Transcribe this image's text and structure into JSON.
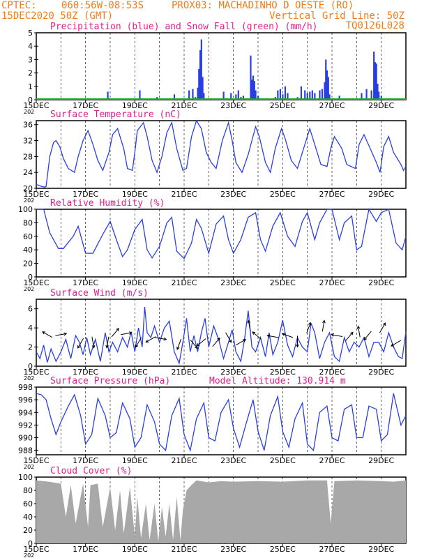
{
  "header": {
    "left_line1": "CPTEC:",
    "coords": "060:56W-08:53S",
    "station": "PROX03: MACHADINHO D OESTE (RO)",
    "left_line2": "15DEC2020 50Z (GMT)",
    "grid_note": "Vertical Grid Line: 50Z",
    "model_code": "TQ0126L028",
    "color": "#f07d1a"
  },
  "colors": {
    "title": "#e0208a",
    "line": "#2a3fe0",
    "precip": "#2a3fe0",
    "snow": "#1faa2a",
    "cloud": "#a8a8a8",
    "wind_arrow": "#000000"
  },
  "x_axis": {
    "day_labels": [
      "15DEC",
      "17DEC",
      "19DEC",
      "21DEC",
      "23DEC",
      "25DEC",
      "27DEC",
      "29DEC"
    ],
    "start_day": 15,
    "end_day": 30,
    "year_stub": "202"
  },
  "chart_data": [
    {
      "type": "bar",
      "title": "Precipitation (blue) and Snow Fall (green) (mm/h)",
      "ylim": [
        0,
        5
      ],
      "yticks": [
        "0",
        "1",
        "2",
        "3",
        "4",
        "5"
      ],
      "series": [
        {
          "x": [
            16.1,
            17.9,
            19.2,
            19.9,
            20.6,
            21.2,
            21.35,
            21.45,
            21.55,
            21.6,
            21.65,
            21.7,
            21.75,
            21.8,
            22.6,
            22.9,
            23.1,
            23.2,
            23.3,
            23.4,
            23.7,
            23.75,
            23.8,
            23.85,
            23.9,
            24.0,
            24.7,
            24.8,
            24.9,
            25.0,
            25.1,
            25.2,
            25.6,
            25.75,
            25.9,
            26.0,
            26.1,
            26.2,
            26.3,
            26.5,
            26.6,
            26.7,
            26.75,
            26.8,
            26.85,
            26.9,
            27.0,
            27.3,
            28.2,
            28.4,
            28.6,
            28.7,
            28.75,
            28.8,
            28.85,
            28.9,
            29.0
          ],
          "values": [
            0.1,
            0.6,
            0.7,
            0.2,
            0.4,
            0.7,
            0.8,
            0.2,
            0.9,
            2.3,
            3.7,
            4.5,
            1.7,
            0.5,
            0.6,
            0.5,
            0.4,
            0.7,
            0.2,
            0.3,
            3.3,
            1.5,
            1.8,
            1.4,
            0.7,
            0.3,
            0.2,
            0.7,
            0.8,
            0.4,
            1.0,
            0.5,
            0.2,
            1.0,
            0.7,
            0.5,
            0.6,
            0.7,
            0.5,
            0.7,
            0.8,
            1.3,
            3.0,
            2.2,
            1.7,
            0.4,
            0.1,
            0.3,
            0.5,
            0.8,
            0.7,
            3.6,
            2.8,
            2.7,
            1.2,
            0.6,
            0.3
          ]
        }
      ]
    },
    {
      "type": "line",
      "title": "Surface Temperature (nC)",
      "ylim": [
        20,
        37
      ],
      "yticks": [
        "20",
        "24",
        "28",
        "32",
        "36"
      ],
      "x": [
        15.0,
        15.2,
        15.35,
        15.4,
        15.55,
        15.7,
        15.8,
        15.95,
        16.1,
        16.3,
        16.55,
        16.7,
        16.9,
        17.1,
        17.3,
        17.5,
        17.7,
        17.95,
        18.1,
        18.3,
        18.55,
        18.7,
        18.9,
        19.0,
        19.1,
        19.35,
        19.5,
        19.7,
        19.9,
        20.1,
        20.3,
        20.5,
        20.7,
        20.95,
        21.1,
        21.3,
        21.5,
        21.7,
        21.9,
        22.1,
        22.3,
        22.55,
        22.8,
        22.95,
        23.1,
        23.35,
        23.6,
        23.9,
        24.05,
        24.3,
        24.5,
        24.7,
        24.95,
        25.1,
        25.35,
        25.6,
        25.9,
        26.1,
        26.3,
        26.55,
        26.8,
        26.95,
        27.1,
        27.4,
        27.6,
        27.95,
        28.1,
        28.3,
        28.55,
        28.8,
        28.95,
        29.1,
        29.3,
        29.5,
        29.8,
        29.9,
        30.0
      ],
      "values": [
        21.0,
        20.5,
        20.3,
        20.5,
        28.0,
        31.5,
        32.0,
        30.5,
        27.5,
        25.0,
        24.0,
        28.0,
        32.0,
        34.5,
        31.0,
        27.0,
        24.5,
        29.0,
        33.5,
        35.0,
        30.0,
        25.0,
        24.5,
        29.0,
        34.5,
        36.5,
        33.0,
        27.0,
        24.0,
        28.0,
        34.0,
        36.5,
        30.0,
        24.5,
        25.0,
        33.0,
        37.0,
        35.0,
        29.0,
        26.5,
        25.0,
        32.0,
        36.5,
        32.0,
        26.5,
        24.0,
        28.5,
        35.5,
        33.0,
        26.5,
        24.0,
        30.0,
        35.0,
        32.5,
        27.0,
        25.0,
        31.0,
        35.0,
        31.0,
        26.0,
        25.5,
        30.0,
        33.0,
        30.0,
        26.0,
        25.0,
        31.0,
        33.5,
        30.0,
        26.5,
        24.0,
        30.5,
        33.0,
        29.0,
        26.0,
        24.5,
        25.5
      ]
    },
    {
      "type": "line",
      "title": "Relative Humidity (%)",
      "ylim": [
        0,
        100
      ],
      "yticks": [
        "0",
        "20",
        "40",
        "60",
        "80",
        "100"
      ],
      "x": [
        15.0,
        15.3,
        15.55,
        15.9,
        16.1,
        16.5,
        16.7,
        17.0,
        17.3,
        17.7,
        18.0,
        18.3,
        18.5,
        18.7,
        19.0,
        19.3,
        19.5,
        19.7,
        20.0,
        20.3,
        20.5,
        20.7,
        21.0,
        21.3,
        21.5,
        21.7,
        22.0,
        22.3,
        22.6,
        22.8,
        23.0,
        23.3,
        23.6,
        23.9,
        24.1,
        24.3,
        24.6,
        24.9,
        25.2,
        25.5,
        25.8,
        26.0,
        26.3,
        26.5,
        26.8,
        27.0,
        27.3,
        27.5,
        27.8,
        28.0,
        28.2,
        28.5,
        28.8,
        29.0,
        29.3,
        29.6,
        29.85,
        30.0
      ],
      "values": [
        100.0,
        100.0,
        65.0,
        42.0,
        42.0,
        60.0,
        75.0,
        35.0,
        35.0,
        63.0,
        82.0,
        50.0,
        30.0,
        40.0,
        70.0,
        85.0,
        40.0,
        28.0,
        45.0,
        80.0,
        88.0,
        38.0,
        27.0,
        50.0,
        85.0,
        72.0,
        35.0,
        78.0,
        90.0,
        55.0,
        35.0,
        55.0,
        88.0,
        95.0,
        55.0,
        38.0,
        75.0,
        95.0,
        60.0,
        45.0,
        82.0,
        95.0,
        55.0,
        80.0,
        100.0,
        100.0,
        55.0,
        80.0,
        90.0,
        40.0,
        45.0,
        100.0,
        82.0,
        95.0,
        100.0,
        50.0,
        40.0,
        60.0
      ]
    },
    {
      "type": "line",
      "title": "Surface Wind (m/s)",
      "ylim": [
        0,
        7
      ],
      "yticks": [
        "0",
        "2",
        "4",
        "6"
      ],
      "x": [
        15.0,
        15.15,
        15.3,
        15.45,
        15.6,
        15.8,
        16.0,
        16.2,
        16.4,
        16.6,
        16.75,
        16.9,
        17.05,
        17.2,
        17.4,
        17.6,
        17.8,
        17.95,
        18.1,
        18.3,
        18.5,
        18.7,
        18.85,
        19.0,
        19.15,
        19.3,
        19.4,
        19.5,
        19.65,
        19.8,
        20.0,
        20.2,
        20.4,
        20.6,
        20.8,
        20.95,
        21.1,
        21.25,
        21.4,
        21.55,
        21.7,
        21.85,
        22.0,
        22.2,
        22.4,
        22.6,
        22.8,
        22.95,
        23.1,
        23.3,
        23.45,
        23.6,
        23.75,
        23.9,
        24.1,
        24.3,
        24.45,
        24.6,
        24.8,
        25.0,
        25.2,
        25.4,
        25.6,
        25.8,
        26.0,
        26.15,
        26.3,
        26.5,
        26.7,
        26.9,
        27.1,
        27.3,
        27.5,
        27.7,
        27.9,
        28.1,
        28.3,
        28.5,
        28.7,
        28.9,
        29.1,
        29.3,
        29.5,
        29.7,
        29.85,
        30.0
      ],
      "values": [
        1.5,
        0.8,
        2.2,
        0.4,
        1.8,
        0.5,
        1.5,
        2.8,
        0.8,
        3.2,
        2.5,
        1.2,
        3.0,
        1.2,
        2.8,
        0.5,
        3.5,
        1.5,
        2.5,
        1.5,
        3.0,
        2.0,
        3.6,
        1.5,
        4.0,
        2.0,
        6.2,
        3.5,
        3.0,
        4.2,
        2.5,
        4.0,
        4.7,
        1.5,
        0.3,
        2.5,
        5.0,
        1.5,
        3.2,
        1.5,
        3.5,
        5.0,
        2.0,
        4.2,
        2.8,
        0.8,
        2.5,
        3.8,
        1.5,
        0.5,
        2.8,
        5.8,
        2.0,
        1.5,
        3.0,
        1.0,
        3.5,
        1.2,
        2.5,
        4.8,
        2.2,
        1.0,
        3.0,
        2.0,
        1.5,
        4.5,
        3.5,
        0.8,
        2.5,
        3.5,
        1.0,
        0.5,
        3.0,
        1.5,
        2.5,
        2.0,
        3.0,
        1.0,
        2.5,
        2.5,
        1.5,
        3.5,
        2.0,
        1.0,
        0.8,
        3.6
      ]
    },
    {
      "type": "line",
      "title": "Surface Pressure (hPa)",
      "annotation": "Model Altitude: 130.914 m",
      "ylim": [
        987.3,
        998
      ],
      "yticks": [
        "988",
        "990",
        "992",
        "994",
        "996",
        "998"
      ],
      "x": [
        15.0,
        15.2,
        15.4,
        15.6,
        15.8,
        16.0,
        16.3,
        16.55,
        16.8,
        17.0,
        17.25,
        17.5,
        17.8,
        18.0,
        18.25,
        18.5,
        18.8,
        19.0,
        19.25,
        19.5,
        19.8,
        20.0,
        20.25,
        20.5,
        20.8,
        21.0,
        21.25,
        21.5,
        21.8,
        22.0,
        22.25,
        22.5,
        22.8,
        23.0,
        23.25,
        23.5,
        23.8,
        24.0,
        24.25,
        24.5,
        24.8,
        25.0,
        25.25,
        25.5,
        25.8,
        26.0,
        26.25,
        26.5,
        26.8,
        27.0,
        27.25,
        27.5,
        27.8,
        28.0,
        28.25,
        28.5,
        28.8,
        29.0,
        29.25,
        29.5,
        29.8,
        30.0
      ],
      "values": [
        997.0,
        996.8,
        996.0,
        993.0,
        990.5,
        992.5,
        995.0,
        996.8,
        993.5,
        989.0,
        990.5,
        996.2,
        993.5,
        990.0,
        990.8,
        995.5,
        993.0,
        988.5,
        990.0,
        995.2,
        992.5,
        989.0,
        988.0,
        993.5,
        996.2,
        990.5,
        988.0,
        993.0,
        995.5,
        990.0,
        989.5,
        994.0,
        996.0,
        991.5,
        988.5,
        992.0,
        996.0,
        991.0,
        988.0,
        993.5,
        996.5,
        991.0,
        988.5,
        993.0,
        995.5,
        989.0,
        988.0,
        994.0,
        995.0,
        990.0,
        989.5,
        994.5,
        995.2,
        990.0,
        990.0,
        995.0,
        994.5,
        989.5,
        990.5,
        997.0,
        992.0,
        993.5
      ]
    },
    {
      "type": "area",
      "title": "Cloud Cover (%)",
      "ylim": [
        0,
        100
      ],
      "yticks": [
        "0",
        "20",
        "40",
        "60",
        "80",
        "100"
      ],
      "x": [
        15.0,
        15.5,
        16.0,
        16.2,
        16.4,
        16.6,
        16.9,
        17.1,
        17.2,
        17.5,
        17.7,
        18.0,
        18.2,
        18.4,
        18.55,
        18.8,
        19.0,
        19.1,
        19.25,
        19.45,
        19.6,
        19.8,
        19.95,
        20.1,
        20.25,
        20.4,
        20.55,
        20.7,
        20.85,
        20.95,
        21.1,
        21.3,
        21.5,
        22.0,
        22.5,
        23.0,
        24.0,
        25.0,
        26.0,
        26.8,
        26.95,
        27.1,
        28.0,
        29.0,
        29.5,
        30.0
      ],
      "values": [
        95.0,
        93.0,
        90.0,
        40.0,
        88.0,
        30.0,
        90.0,
        25.0,
        88.0,
        90.0,
        25.0,
        85.0,
        20.0,
        80.0,
        15.0,
        85.0,
        10.0,
        70.0,
        8.0,
        60.0,
        5.0,
        60.0,
        3.0,
        55.0,
        10.0,
        60.0,
        5.0,
        70.0,
        4.0,
        50.0,
        80.0,
        88.0,
        95.0,
        92.0,
        94.0,
        93.0,
        94.0,
        93.0,
        95.0,
        95.0,
        30.0,
        94.0,
        95.0,
        94.0,
        93.0,
        95.0
      ]
    }
  ],
  "wind_arrows": [
    {
      "x": 15.45,
      "y": 3.3,
      "dir": 300
    },
    {
      "x": 16.0,
      "y": 3.3,
      "dir": 80
    },
    {
      "x": 16.8,
      "y": 2.4,
      "dir": 210
    },
    {
      "x": 17.3,
      "y": 2.5,
      "dir": 170
    },
    {
      "x": 17.9,
      "y": 2.5,
      "dir": 190
    },
    {
      "x": 18.2,
      "y": 3.5,
      "dir": 40
    },
    {
      "x": 18.65,
      "y": 3.4,
      "dir": 80
    },
    {
      "x": 19.15,
      "y": 2.5,
      "dir": 210
    },
    {
      "x": 19.65,
      "y": 2.8,
      "dir": 240
    },
    {
      "x": 20.05,
      "y": 2.9,
      "dir": 100
    },
    {
      "x": 20.8,
      "y": 2.3,
      "dir": 200
    },
    {
      "x": 21.4,
      "y": 2.3,
      "dir": 140
    },
    {
      "x": 21.7,
      "y": 2.5,
      "dir": 230
    },
    {
      "x": 22.3,
      "y": 2.5,
      "dir": 40
    },
    {
      "x": 22.8,
      "y": 3.0,
      "dir": 150
    },
    {
      "x": 23.3,
      "y": 2.5,
      "dir": 60
    },
    {
      "x": 23.65,
      "y": 4.2,
      "dir": 350
    },
    {
      "x": 23.95,
      "y": 3.2,
      "dir": 310
    },
    {
      "x": 24.6,
      "y": 3.1,
      "dir": 280
    },
    {
      "x": 25.2,
      "y": 3.2,
      "dir": 290
    },
    {
      "x": 25.6,
      "y": 2.6,
      "dir": 180
    },
    {
      "x": 26.05,
      "y": 4.0,
      "dir": 20
    },
    {
      "x": 26.65,
      "y": 4.2,
      "dir": 10
    },
    {
      "x": 27.2,
      "y": 3.2,
      "dir": 280
    },
    {
      "x": 27.7,
      "y": 3.1,
      "dir": 40
    },
    {
      "x": 28.1,
      "y": 3.6,
      "dir": 350
    },
    {
      "x": 28.45,
      "y": 3.2,
      "dir": 220
    },
    {
      "x": 29.05,
      "y": 4.0,
      "dir": 30
    },
    {
      "x": 29.6,
      "y": 2.4,
      "dir": 240
    }
  ]
}
